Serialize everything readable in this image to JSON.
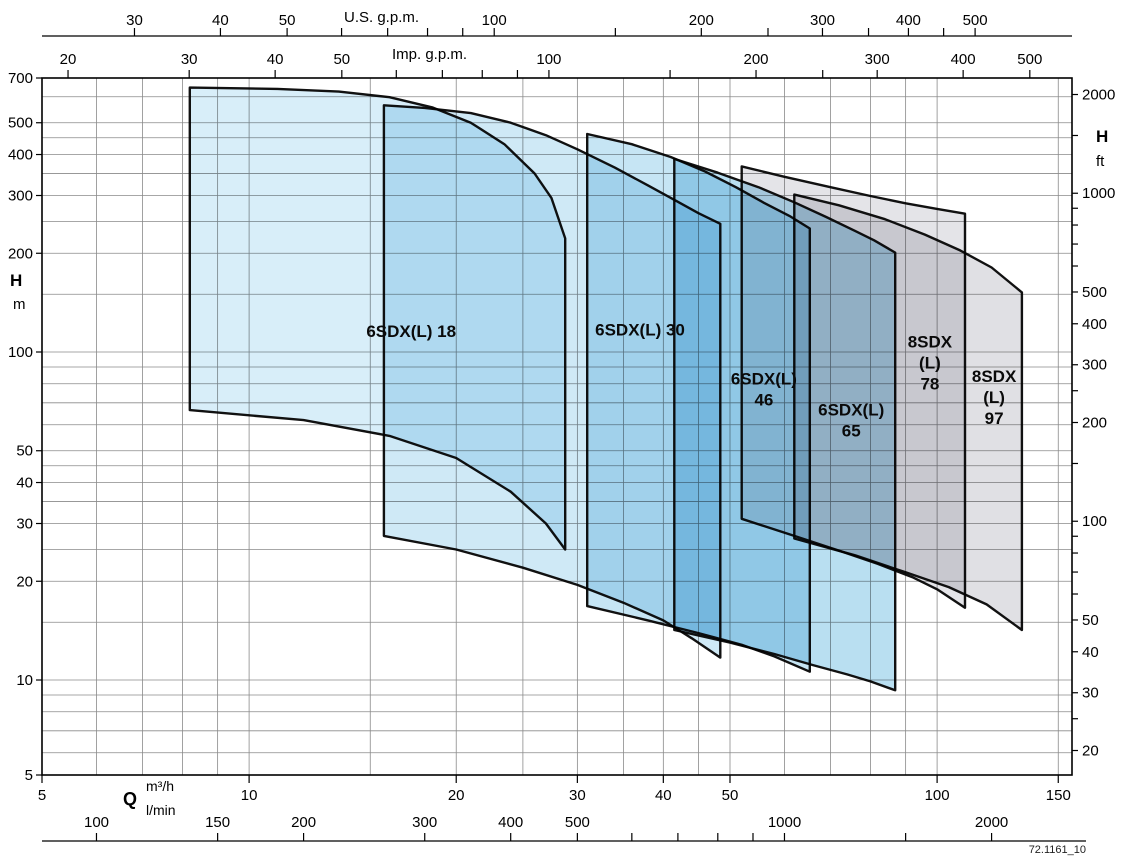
{
  "figure": {
    "code": "72.1161_10"
  },
  "chart_data": {
    "type": "area",
    "chart_kind": "pump-coverage-envelope",
    "scale": "log-log",
    "x_axes": {
      "top_us_gpm": {
        "unit": "U.S. g.p.m.",
        "labeled_ticks": [
          30,
          40,
          50,
          100,
          200,
          300,
          400,
          500
        ],
        "minor_ticks": [
          60,
          70,
          80,
          90,
          150,
          250,
          350,
          450
        ],
        "to_m3h": 0.22712
      },
      "top_imp_gpm": {
        "unit": "Imp. g.p.m.",
        "labeled_ticks": [
          20,
          30,
          40,
          50,
          100,
          200,
          300,
          400,
          500
        ],
        "minor_ticks": [
          60,
          70,
          80,
          90,
          150,
          250
        ],
        "to_m3h": 0.27276
      },
      "bottom_m3h": {
        "label": "Q",
        "unit": "m³/h",
        "range": [
          5,
          157
        ],
        "labeled_ticks": [
          5,
          10,
          20,
          30,
          40,
          50,
          100,
          150
        ],
        "to_m3h": 1
      },
      "bottom_lmin": {
        "unit": "l/min",
        "labeled_ticks": [
          100,
          150,
          200,
          300,
          400,
          500,
          1000,
          2000
        ],
        "minor_ticks": [
          600,
          700,
          800,
          900,
          1500
        ],
        "to_m3h": 0.06
      }
    },
    "y_axes": {
      "left_m": {
        "label": "H",
        "unit": "m",
        "range": [
          5,
          690
        ],
        "labeled_ticks": [
          700,
          500,
          400,
          300,
          200,
          100,
          50,
          40,
          30,
          20,
          10,
          5
        ]
      },
      "right_ft": {
        "label": "H",
        "unit": "ft",
        "labeled_ticks": [
          2000,
          1000,
          500,
          400,
          300,
          200,
          100,
          50,
          40,
          30,
          20
        ],
        "minor_ticks": [
          25,
          60,
          70,
          80,
          90,
          150,
          250,
          600,
          700,
          800,
          900,
          1500
        ],
        "to_m": 0.3048
      }
    },
    "grid": {
      "x_values": [
        6,
        7,
        8,
        9,
        10,
        15,
        20,
        25,
        30,
        35,
        40,
        45,
        50,
        60,
        70,
        80,
        90,
        100,
        150
      ],
      "y_values": [
        6,
        7,
        8,
        9,
        10,
        15,
        20,
        25,
        30,
        35,
        40,
        45,
        50,
        60,
        70,
        80,
        90,
        100,
        150,
        200,
        250,
        300,
        350,
        400,
        450,
        500,
        600
      ]
    },
    "series": [
      {
        "id": "6sdxl-18",
        "name": "6SDX(L) 18",
        "label_lines": [
          "6SDX(L) 18"
        ],
        "label_pos": [
          17.2,
          116
        ],
        "color": "#d8eef9",
        "q_min": 8.2,
        "q_max": 28.8,
        "top_curve": [
          [
            8.2,
            640
          ],
          [
            11,
            634
          ],
          [
            13.5,
            622
          ],
          [
            16,
            598
          ],
          [
            18.5,
            556
          ],
          [
            21,
            500
          ],
          [
            23.5,
            430
          ],
          [
            26,
            350
          ],
          [
            27.5,
            295
          ],
          [
            28.8,
            222
          ]
        ],
        "bottom_curve": [
          [
            8.2,
            66.5
          ],
          [
            12,
            62
          ],
          [
            16,
            55.5
          ],
          [
            20,
            47.5
          ],
          [
            24,
            37.5
          ],
          [
            27,
            30
          ],
          [
            28.8,
            25
          ]
        ]
      },
      {
        "id": "6sdxl-30",
        "name": "6SDX(L) 30",
        "label_lines": [
          "6SDX(L) 30"
        ],
        "label_pos": [
          37,
          117
        ],
        "color": "#cfe9f6",
        "q_min": 15.7,
        "q_max": 48.4,
        "top_curve": [
          [
            15.7,
            565
          ],
          [
            18,
            555
          ],
          [
            21,
            535
          ],
          [
            24,
            500
          ],
          [
            27,
            458
          ],
          [
            30,
            415
          ],
          [
            34,
            365
          ],
          [
            38,
            322
          ],
          [
            42,
            287
          ],
          [
            45,
            265
          ],
          [
            48.4,
            246
          ]
        ],
        "bottom_curve": [
          [
            15.7,
            27.5
          ],
          [
            20,
            25
          ],
          [
            25,
            22
          ],
          [
            30,
            19.5
          ],
          [
            35,
            17.2
          ],
          [
            40,
            15.2
          ],
          [
            44,
            13.4
          ],
          [
            48.4,
            11.7
          ]
        ]
      },
      {
        "id": "6sdxl-46",
        "name": "6SDX(L) 46",
        "label_lines": [
          "6SDX(L)",
          "46"
        ],
        "label_pos": [
          56,
          77
        ],
        "color": "#c6e5f4",
        "q_min": 31,
        "q_max": 65.3,
        "top_curve": [
          [
            31,
            462
          ],
          [
            36,
            430
          ],
          [
            41,
            393
          ],
          [
            46,
            355
          ],
          [
            51,
            318
          ],
          [
            56,
            285
          ],
          [
            61,
            260
          ],
          [
            65.3,
            238
          ]
        ],
        "bottom_curve": [
          [
            31,
            16.8
          ],
          [
            38,
            15.2
          ],
          [
            45,
            13.9
          ],
          [
            52,
            12.8
          ],
          [
            58,
            11.8
          ],
          [
            65.3,
            10.6
          ]
        ]
      },
      {
        "id": "6sdxl-65",
        "name": "6SDX(L) 65",
        "label_lines": [
          "6SDX(L)",
          "65"
        ],
        "label_pos": [
          75,
          62
        ],
        "color": "#b9dff1",
        "q_min": 41.5,
        "q_max": 86.9,
        "top_curve": [
          [
            41.5,
            388
          ],
          [
            48,
            352
          ],
          [
            55,
            318
          ],
          [
            62,
            286
          ],
          [
            69,
            258
          ],
          [
            76,
            234
          ],
          [
            81,
            219
          ],
          [
            86.9,
            201
          ]
        ],
        "bottom_curve": [
          [
            41.5,
            14.2
          ],
          [
            50,
            13
          ],
          [
            58,
            12
          ],
          [
            66,
            11.1
          ],
          [
            74,
            10.4
          ],
          [
            80,
            9.9
          ],
          [
            86.9,
            9.3
          ]
        ]
      },
      {
        "id": "8sdxl-78",
        "name": "8SDX (L) 78",
        "label_lines": [
          "8SDX",
          "(L)",
          "78"
        ],
        "label_pos": [
          97.6,
          93
        ],
        "color": "#e4e4e8",
        "q_min": 52,
        "q_max": 109.8,
        "top_curve": [
          [
            52,
            368
          ],
          [
            60,
            342
          ],
          [
            70,
            318
          ],
          [
            80,
            299
          ],
          [
            90,
            284
          ],
          [
            100,
            273
          ],
          [
            109.8,
            264
          ]
        ],
        "bottom_curve": [
          [
            52,
            31
          ],
          [
            62,
            27.5
          ],
          [
            72,
            24.8
          ],
          [
            82,
            22.6
          ],
          [
            92,
            20.6
          ],
          [
            100,
            18.9
          ],
          [
            109.8,
            16.6
          ]
        ]
      },
      {
        "id": "8sdxl-97",
        "name": "8SDX (L) 97",
        "label_lines": [
          "8SDX",
          "(L)",
          "97"
        ],
        "label_pos": [
          121,
          73
        ],
        "color": "#e0e0e4",
        "q_min": 62,
        "q_max": 132.8,
        "top_curve": [
          [
            62,
            302
          ],
          [
            72,
            280
          ],
          [
            84,
            254
          ],
          [
            96,
            228
          ],
          [
            108,
            204
          ],
          [
            120,
            181
          ],
          [
            132.8,
            152
          ]
        ],
        "bottom_curve": [
          [
            62,
            27
          ],
          [
            76,
            24
          ],
          [
            90,
            21.3
          ],
          [
            104,
            19.2
          ],
          [
            118,
            17
          ],
          [
            132.8,
            14.2
          ]
        ]
      }
    ]
  }
}
